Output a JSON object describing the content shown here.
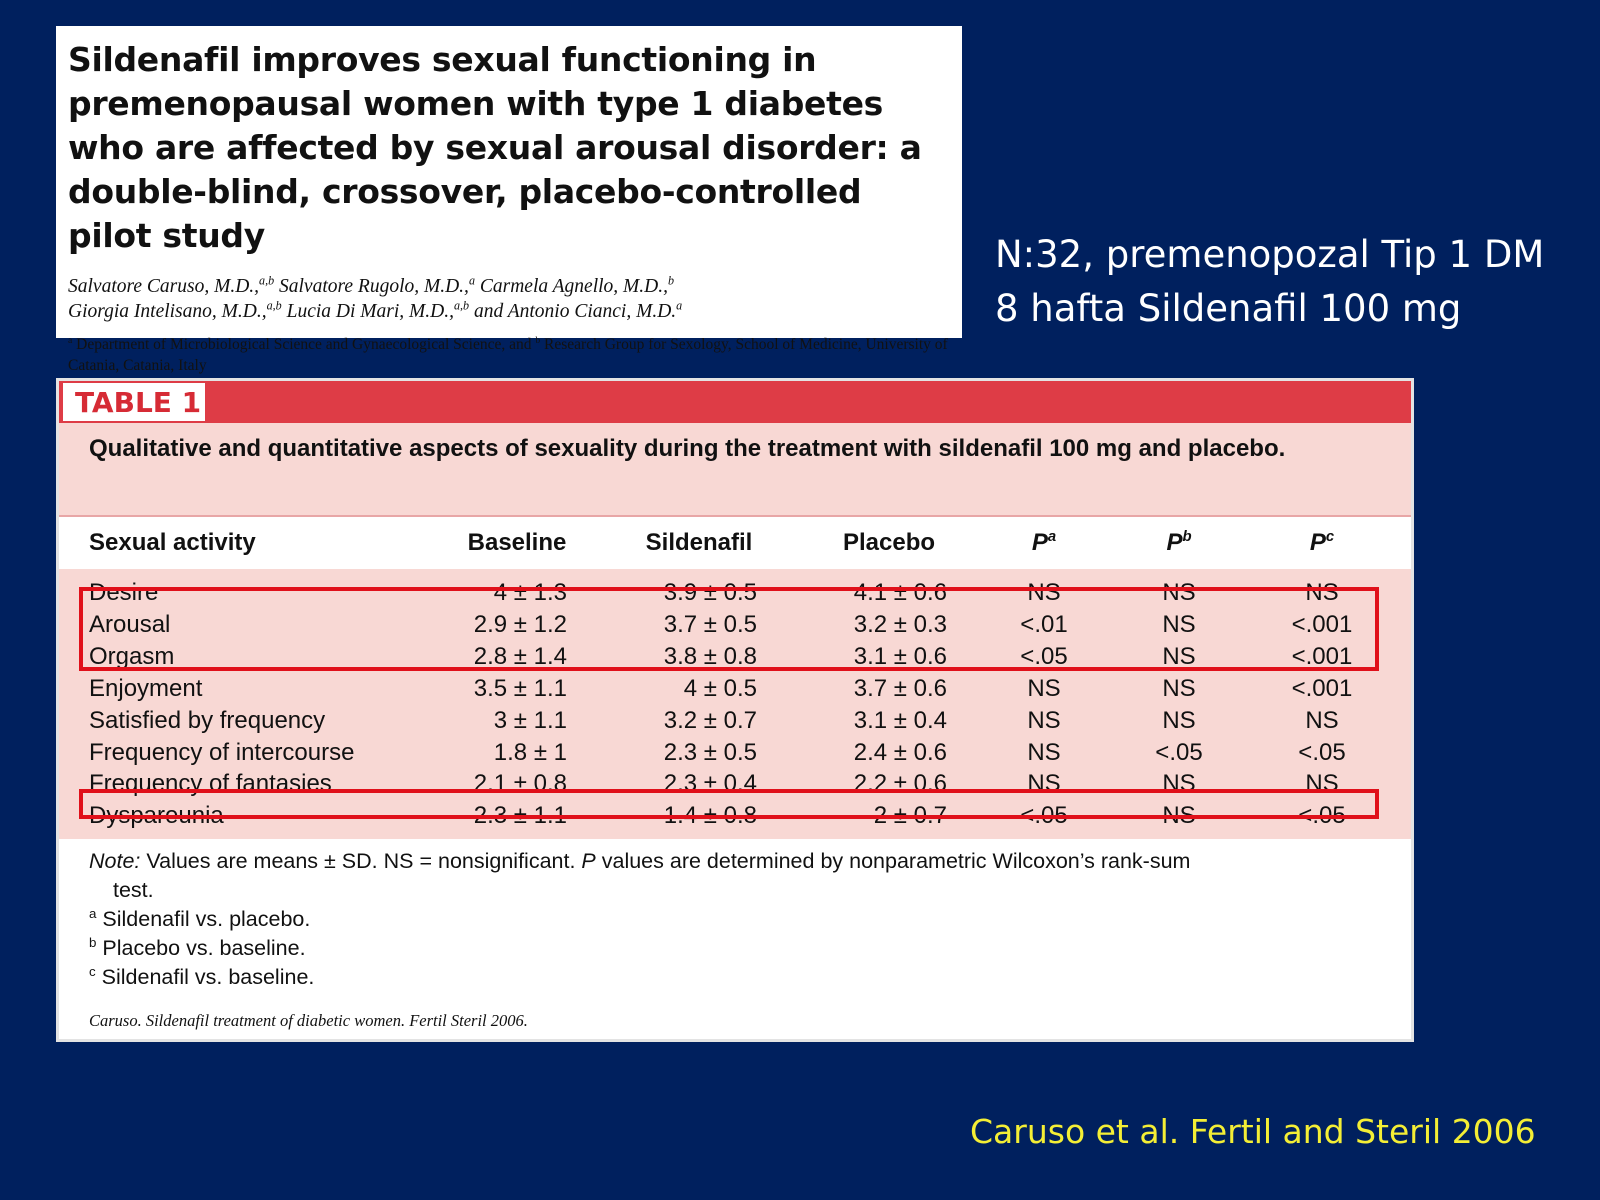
{
  "article": {
    "title": "Sildenafil improves sexual functioning in premenopausal women with type 1 diabetes who are affected by sexual arousal disorder: a double-blind, crossover, placebo-controlled pilot study",
    "authors_line1": "Salvatore Caruso, M.D.,<sup>a,b</sup> Salvatore Rugolo, M.D.,<sup>a</sup> Carmela Agnello, M.D.,<sup>b</sup>",
    "authors_line2": "Giorgia Intelisano, M.D.,<sup>a,b</sup> Lucia Di Mari, M.D.,<sup>a,b</sup> and Antonio Cianci, M.D.<sup>a</sup>",
    "affiliation": "<sup>a</sup> Department of Microbiological Science and Gynaecological Science, and <sup>b</sup> Research Group for Sexology, School of Medicine, University of Catania, Catania, Italy"
  },
  "side_info": {
    "line1": "N:32, premenopozal Tip 1 DM",
    "line2": "8 hafta Sildenafil 100 mg"
  },
  "table": {
    "label": "TABLE 1",
    "caption": "Qualitative and quantitative aspects of sexuality during the treatment with sildenafil 100 mg and placebo.",
    "headers": {
      "activity": "Sexual activity",
      "baseline": "Baseline",
      "sildenafil": "Sildenafil",
      "placebo": "Placebo",
      "pa": "P<sup>a</sup>",
      "pb": "P<sup>b</sup>",
      "pc": "P<sup>c</sup>"
    },
    "rows": [
      {
        "activity": "Desire",
        "baseline": "4 ± 1.3",
        "sildenafil": "3.9 ± 0.5",
        "placebo": "4.1 ± 0.6",
        "pa": "NS",
        "pb": "NS",
        "pc": "NS"
      },
      {
        "activity": "Arousal",
        "baseline": "2.9 ± 1.2",
        "sildenafil": "3.7 ± 0.5",
        "placebo": "3.2 ± 0.3",
        "pa": "<.01",
        "pb": "NS",
        "pc": "<.001"
      },
      {
        "activity": "Orgasm",
        "baseline": "2.8 ± 1.4",
        "sildenafil": "3.8 ± 0.8",
        "placebo": "3.1 ± 0.6",
        "pa": "<.05",
        "pb": "NS",
        "pc": "<.001"
      },
      {
        "activity": "Enjoyment",
        "baseline": "3.5 ± 1.1",
        "sildenafil": "4 ± 0.5",
        "placebo": "3.7 ± 0.6",
        "pa": "NS",
        "pb": "NS",
        "pc": "<.001"
      },
      {
        "activity": "Satisfied by frequency",
        "baseline": "3 ± 1.1",
        "sildenafil": "3.2 ± 0.7",
        "placebo": "3.1 ± 0.4",
        "pa": "NS",
        "pb": "NS",
        "pc": "NS"
      },
      {
        "activity": "Frequency of intercourse",
        "baseline": "1.8 ± 1",
        "sildenafil": "2.3 ± 0.5",
        "placebo": "2.4 ± 0.6",
        "pa": "NS",
        "pb": "<.05",
        "pc": "<.05"
      },
      {
        "activity": "Frequency of fantasies",
        "baseline": "2.1 ± 0.8",
        "sildenafil": "2.3 ± 0.4",
        "placebo": "2.2 ± 0.6",
        "pa": "NS",
        "pb": "NS",
        "pc": "NS"
      },
      {
        "activity": "Dyspareunia",
        "baseline": "2.3 ± 1.1",
        "sildenafil": "1.4 ± 0.8",
        "placebo": "2 ± 0.7",
        "pa": "<.05",
        "pb": "NS",
        "pc": "<.05"
      }
    ],
    "notes": {
      "note_line": "<i>Note:</i> Values are means ± SD. NS = nonsignificant. <i>P</i> values are determined by nonparametric Wilcoxon’s rank-sum",
      "note_line2": "test.",
      "a": "<sup>a</sup> Sildenafil vs. placebo.",
      "b": "<sup>b</sup> Placebo vs. baseline.",
      "c": "<sup>c</sup> Sildenafil vs. baseline."
    },
    "source": "Caruso. Sildenafil treatment of diabetic women. Fertil Steril 2006."
  },
  "citation": "Caruso et al. Fertil and Steril 2006",
  "colors": {
    "background": "#00205e",
    "table_red": "#de3c46",
    "table_pink": "#f8d8d4",
    "highlight": "#e0101a",
    "citation": "#f4ee35"
  }
}
